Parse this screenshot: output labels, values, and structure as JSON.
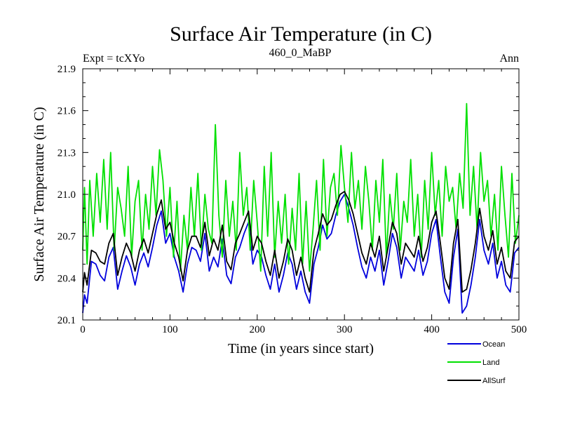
{
  "chart_data": {
    "type": "line",
    "title": "Surface Air Temperature (in C)",
    "subtitle_left": "Expt = tcXYo",
    "subtitle_center": "460_0_MaBP",
    "subtitle_right": "Ann",
    "xlabel": "Time (in years since start)",
    "ylabel": "Surface Air Temperature (in C)",
    "xlim": [
      0,
      500
    ],
    "ylim": [
      20.1,
      21.9
    ],
    "xticks": [
      0,
      100,
      200,
      300,
      400,
      500
    ],
    "yticks": [
      20.1,
      20.4,
      20.7,
      21.0,
      21.3,
      21.6,
      21.9
    ],
    "ytick_labels": [
      "20.1",
      "20.4",
      "20.7",
      "21.0",
      "21.3",
      "21.6",
      "21.9"
    ],
    "grid": false,
    "legend_position": "bottom-right",
    "series": [
      {
        "name": "Ocean",
        "color": "#0000dd",
        "x": [
          0,
          2,
          5,
          10,
          15,
          20,
          25,
          30,
          35,
          40,
          45,
          50,
          55,
          60,
          65,
          70,
          75,
          80,
          85,
          90,
          95,
          100,
          105,
          110,
          115,
          120,
          125,
          130,
          135,
          140,
          145,
          150,
          155,
          160,
          165,
          170,
          175,
          180,
          185,
          190,
          195,
          200,
          205,
          210,
          215,
          220,
          225,
          230,
          235,
          240,
          245,
          250,
          255,
          260,
          265,
          270,
          275,
          280,
          285,
          290,
          295,
          300,
          305,
          310,
          315,
          320,
          325,
          330,
          335,
          340,
          345,
          350,
          355,
          360,
          365,
          370,
          375,
          380,
          385,
          390,
          395,
          400,
          405,
          410,
          415,
          420,
          425,
          430,
          435,
          440,
          445,
          450,
          455,
          460,
          465,
          470,
          475,
          480,
          485,
          490,
          495,
          500
        ],
        "values": [
          20.15,
          20.28,
          20.22,
          20.52,
          20.5,
          20.42,
          20.38,
          20.55,
          20.62,
          20.32,
          20.45,
          20.56,
          20.48,
          20.35,
          20.5,
          20.58,
          20.48,
          20.62,
          20.78,
          20.88,
          20.65,
          20.72,
          20.55,
          20.45,
          20.3,
          20.5,
          20.62,
          20.6,
          20.52,
          20.72,
          20.45,
          20.55,
          20.48,
          20.68,
          20.42,
          20.36,
          20.55,
          20.62,
          20.72,
          20.8,
          20.5,
          20.6,
          20.55,
          20.42,
          20.32,
          20.5,
          20.3,
          20.42,
          20.58,
          20.5,
          20.32,
          20.45,
          20.3,
          20.22,
          20.5,
          20.62,
          20.78,
          20.68,
          20.72,
          20.85,
          20.95,
          21.0,
          20.9,
          20.78,
          20.62,
          20.48,
          20.4,
          20.55,
          20.45,
          20.6,
          20.35,
          20.52,
          20.72,
          20.62,
          20.4,
          20.55,
          20.5,
          20.45,
          20.6,
          20.42,
          20.52,
          20.72,
          20.82,
          20.55,
          20.3,
          20.22,
          20.55,
          20.75,
          20.15,
          20.2,
          20.35,
          20.55,
          20.82,
          20.6,
          20.5,
          20.65,
          20.4,
          20.52,
          20.35,
          20.3,
          20.58,
          20.62
        ]
      },
      {
        "name": "Land",
        "color": "#00e000",
        "x": [
          0,
          2,
          5,
          8,
          12,
          16,
          20,
          24,
          28,
          32,
          36,
          40,
          44,
          48,
          52,
          56,
          60,
          64,
          68,
          72,
          76,
          80,
          84,
          88,
          92,
          96,
          100,
          104,
          108,
          112,
          116,
          120,
          124,
          128,
          132,
          136,
          140,
          144,
          148,
          152,
          156,
          160,
          164,
          168,
          172,
          176,
          180,
          184,
          188,
          192,
          196,
          200,
          204,
          208,
          212,
          216,
          220,
          224,
          228,
          232,
          236,
          240,
          244,
          248,
          252,
          256,
          260,
          264,
          268,
          272,
          276,
          280,
          284,
          288,
          292,
          296,
          300,
          304,
          308,
          312,
          316,
          320,
          324,
          328,
          332,
          336,
          340,
          344,
          348,
          352,
          356,
          360,
          364,
          368,
          372,
          376,
          380,
          384,
          388,
          392,
          396,
          400,
          404,
          408,
          412,
          416,
          420,
          424,
          428,
          432,
          436,
          440,
          444,
          448,
          452,
          456,
          460,
          464,
          468,
          472,
          476,
          480,
          484,
          488,
          492,
          496,
          500
        ],
        "values": [
          20.6,
          21.05,
          20.5,
          21.1,
          20.7,
          21.15,
          20.8,
          21.25,
          20.75,
          21.3,
          20.6,
          21.05,
          20.9,
          20.7,
          21.2,
          20.55,
          20.95,
          21.1,
          20.6,
          21.0,
          20.75,
          21.2,
          20.85,
          21.32,
          21.1,
          20.7,
          21.05,
          20.55,
          20.95,
          20.45,
          20.85,
          20.6,
          21.05,
          20.7,
          21.15,
          20.6,
          21.0,
          20.75,
          20.65,
          21.5,
          20.85,
          20.55,
          21.1,
          20.7,
          20.95,
          20.6,
          21.3,
          20.85,
          21.05,
          20.6,
          21.1,
          20.8,
          20.45,
          21.2,
          20.7,
          21.3,
          20.55,
          20.95,
          20.65,
          21.0,
          20.5,
          20.9,
          20.6,
          21.15,
          20.5,
          20.95,
          20.45,
          20.75,
          21.1,
          20.6,
          21.25,
          20.7,
          21.05,
          21.15,
          20.85,
          21.35,
          21.05,
          20.8,
          21.3,
          20.9,
          21.1,
          20.75,
          21.2,
          20.95,
          20.6,
          21.1,
          20.8,
          21.25,
          20.55,
          21.0,
          20.75,
          21.15,
          20.6,
          20.95,
          20.8,
          21.25,
          20.7,
          21.0,
          20.55,
          21.1,
          20.75,
          21.3,
          20.85,
          21.1,
          20.7,
          21.2,
          20.95,
          21.05,
          20.75,
          21.15,
          20.9,
          21.65,
          20.85,
          21.2,
          20.75,
          21.3,
          20.95,
          21.1,
          20.7,
          21.0,
          20.6,
          21.2,
          20.85,
          20.55,
          21.15,
          20.65,
          20.85
        ]
      },
      {
        "name": "AllSurf",
        "color": "#000000",
        "x": [
          0,
          2,
          5,
          10,
          15,
          20,
          25,
          30,
          35,
          40,
          45,
          50,
          55,
          60,
          65,
          70,
          75,
          80,
          85,
          90,
          95,
          100,
          105,
          110,
          115,
          120,
          125,
          130,
          135,
          140,
          145,
          150,
          155,
          160,
          165,
          170,
          175,
          180,
          185,
          190,
          195,
          200,
          205,
          210,
          215,
          220,
          225,
          230,
          235,
          240,
          245,
          250,
          255,
          260,
          265,
          270,
          275,
          280,
          285,
          290,
          295,
          300,
          305,
          310,
          315,
          320,
          325,
          330,
          335,
          340,
          345,
          350,
          355,
          360,
          365,
          370,
          375,
          380,
          385,
          390,
          395,
          400,
          405,
          410,
          415,
          420,
          425,
          430,
          435,
          440,
          445,
          450,
          455,
          460,
          465,
          470,
          475,
          480,
          485,
          490,
          495,
          500
        ],
        "values": [
          20.3,
          20.44,
          20.35,
          20.6,
          20.58,
          20.52,
          20.5,
          20.65,
          20.72,
          20.42,
          20.55,
          20.65,
          20.58,
          20.45,
          20.6,
          20.68,
          20.58,
          20.72,
          20.86,
          20.96,
          20.75,
          20.8,
          20.65,
          20.55,
          20.38,
          20.6,
          20.7,
          20.7,
          20.62,
          20.8,
          20.56,
          20.68,
          20.6,
          20.78,
          20.52,
          20.46,
          20.65,
          20.72,
          20.8,
          20.88,
          20.6,
          20.7,
          20.65,
          20.52,
          20.42,
          20.6,
          20.4,
          20.52,
          20.68,
          20.6,
          20.42,
          20.55,
          20.4,
          20.3,
          20.6,
          20.72,
          20.86,
          20.78,
          20.82,
          20.92,
          21.0,
          21.02,
          20.96,
          20.86,
          20.72,
          20.58,
          20.5,
          20.65,
          20.55,
          20.7,
          20.45,
          20.62,
          20.8,
          20.72,
          20.5,
          20.65,
          20.6,
          20.55,
          20.7,
          20.52,
          20.62,
          20.8,
          20.88,
          20.65,
          20.4,
          20.32,
          20.65,
          20.82,
          20.3,
          20.32,
          20.46,
          20.65,
          20.9,
          20.7,
          20.6,
          20.74,
          20.5,
          20.62,
          20.45,
          20.4,
          20.66,
          20.7
        ]
      }
    ]
  }
}
